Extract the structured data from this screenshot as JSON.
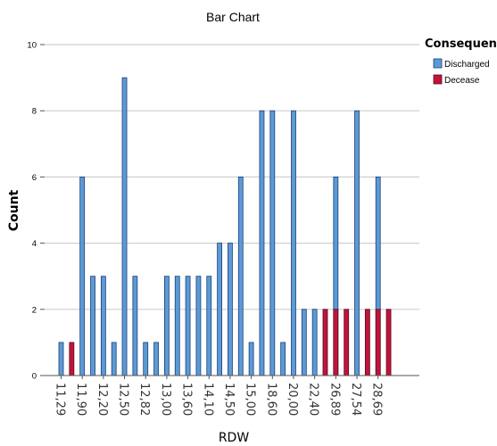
{
  "chart_data": {
    "type": "bar",
    "title": "Bar Chart",
    "xlabel": "RDW",
    "ylabel": "Count",
    "ylim": [
      0,
      10
    ],
    "yticks": [
      0,
      2,
      4,
      6,
      8,
      10
    ],
    "grid": true,
    "legend_placement": "right",
    "legend_title": "Consequence",
    "xtick_labels": [
      "11,29",
      "11,90",
      "12,20",
      "12,50",
      "12,82",
      "13,00",
      "13,60",
      "14,10",
      "14,50",
      "15,00",
      "18,60",
      "20,00",
      "22,40",
      "26,89",
      "27,54",
      "28,69"
    ],
    "series": [
      {
        "name": "Discharged",
        "color": "#5b9bd5",
        "values": [
          1,
          0,
          6,
          3,
          3,
          1,
          9,
          3,
          1,
          1,
          3,
          3,
          3,
          3,
          3,
          4,
          4,
          6,
          1,
          8,
          8,
          1,
          8,
          2,
          2,
          0,
          6,
          0,
          8,
          0,
          6,
          0
        ]
      },
      {
        "name": "Decease",
        "color": "#c0143c",
        "values": [
          0,
          1,
          0,
          0,
          0,
          0,
          0,
          0,
          0,
          0,
          0,
          0,
          0,
          0,
          0,
          0,
          0,
          0,
          0,
          0,
          0,
          0,
          0,
          0,
          0,
          2,
          2,
          2,
          0,
          2,
          2,
          2
        ]
      }
    ]
  }
}
